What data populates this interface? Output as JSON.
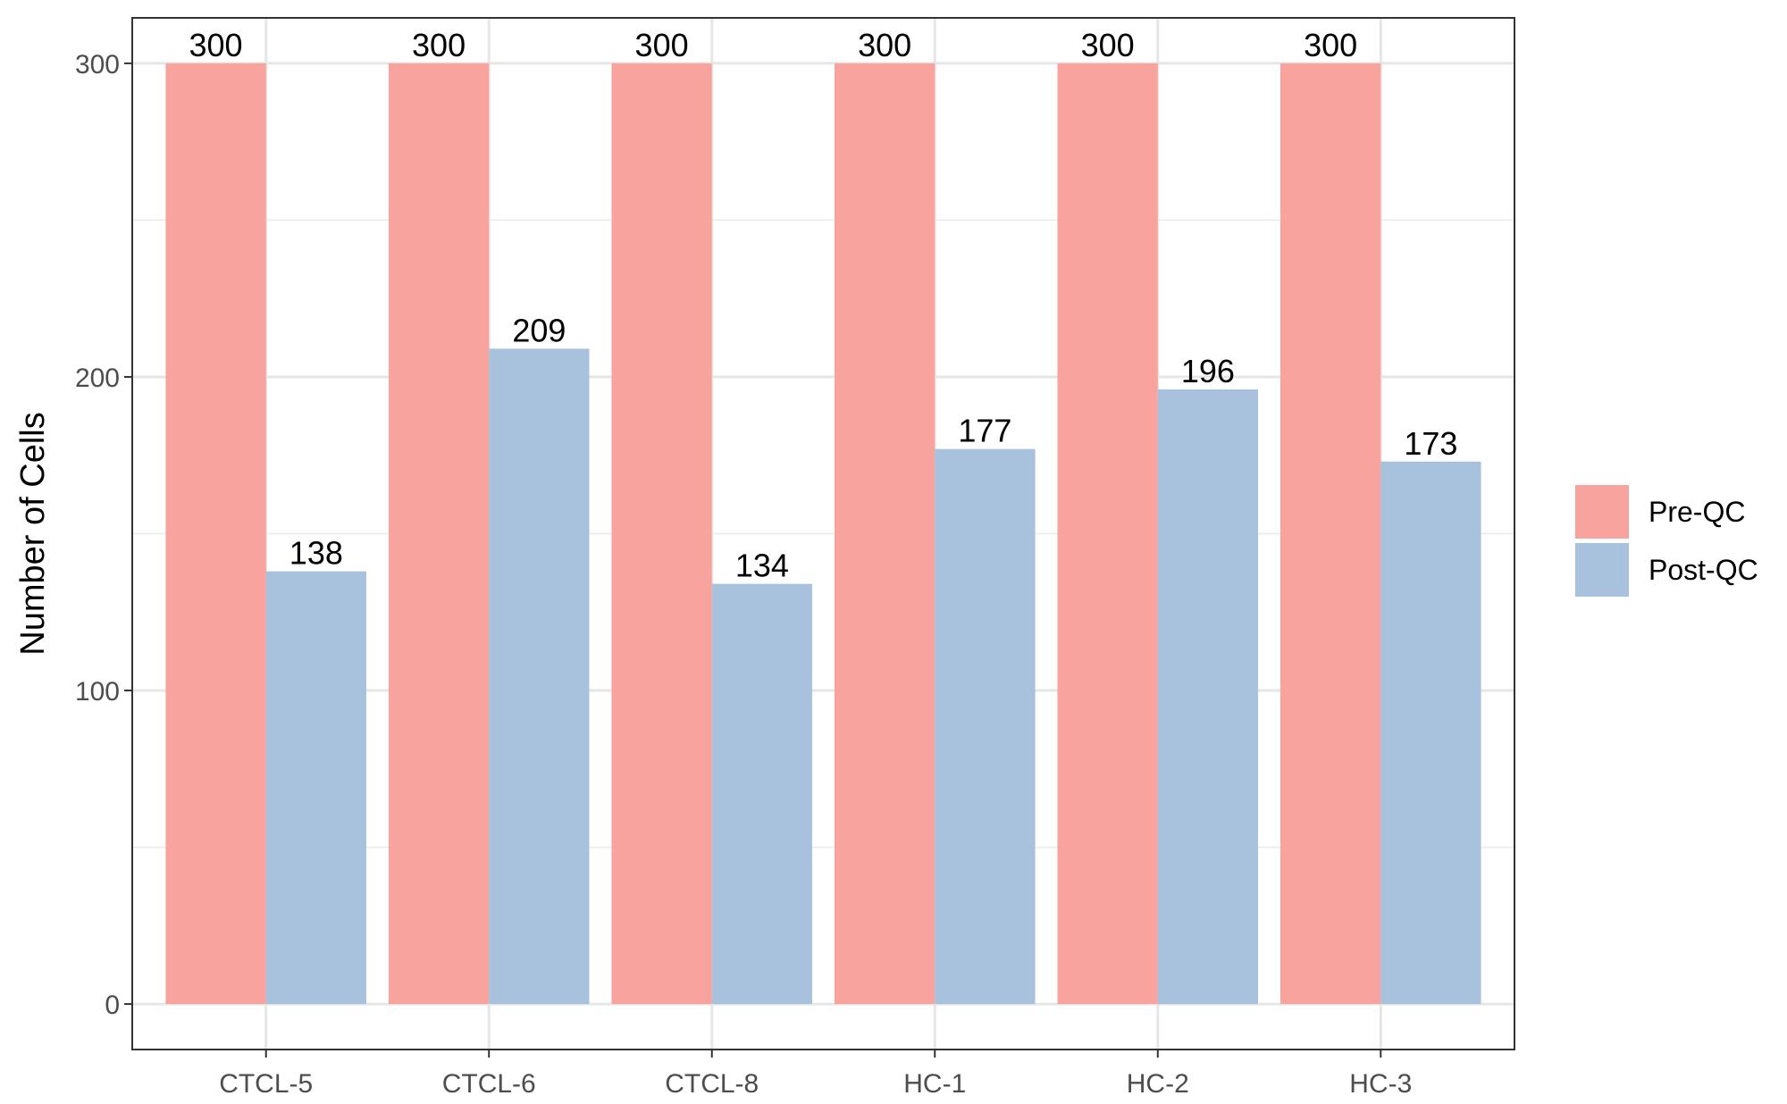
{
  "chart_data": {
    "type": "bar",
    "title": "",
    "xlabel": "",
    "ylabel": "Number of Cells",
    "categories": [
      "CTCL-5",
      "CTCL-6",
      "CTCL-8",
      "HC-1",
      "HC-2",
      "HC-3"
    ],
    "series": [
      {
        "name": "Pre-QC",
        "color": "#F8A39E",
        "values": [
          300,
          300,
          300,
          300,
          300,
          300
        ]
      },
      {
        "name": "Post-QC",
        "color": "#A8C1DC",
        "values": [
          138,
          209,
          134,
          177,
          196,
          173
        ]
      }
    ],
    "ylim": [
      -14.5,
      314.5
    ],
    "yticks": [
      0,
      100,
      200,
      300
    ],
    "grid": true,
    "legend_position": "right",
    "data_labels": true
  }
}
